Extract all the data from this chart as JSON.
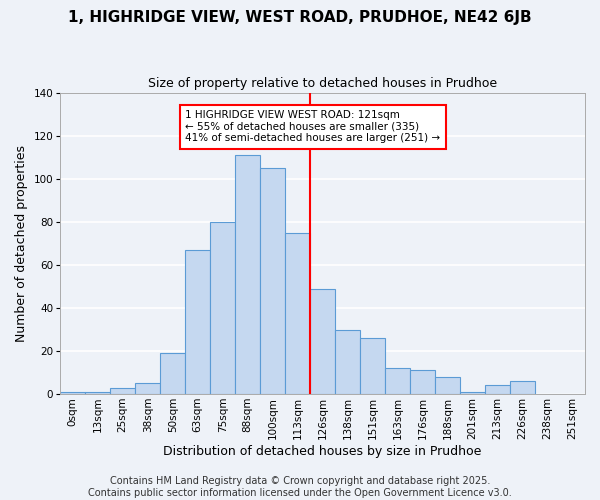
{
  "title": "1, HIGHRIDGE VIEW, WEST ROAD, PRUDHOE, NE42 6JB",
  "subtitle": "Size of property relative to detached houses in Prudhoe",
  "xlabel": "Distribution of detached houses by size in Prudhoe",
  "ylabel": "Number of detached properties",
  "bar_labels": [
    "0sqm",
    "13sqm",
    "25sqm",
    "38sqm",
    "50sqm",
    "63sqm",
    "75sqm",
    "88sqm",
    "100sqm",
    "113sqm",
    "126sqm",
    "138sqm",
    "151sqm",
    "163sqm",
    "176sqm",
    "188sqm",
    "201sqm",
    "213sqm",
    "226sqm",
    "238sqm",
    "251sqm"
  ],
  "bar_values": [
    1,
    1,
    3,
    5,
    19,
    67,
    80,
    111,
    105,
    75,
    49,
    30,
    26,
    12,
    11,
    8,
    1,
    4,
    6,
    0,
    0
  ],
  "bar_color": "#c5d8f0",
  "bar_edge_color": "#5b9bd5",
  "bar_width": 1.0,
  "vline_x": 9.5,
  "vline_color": "red",
  "ylim": [
    0,
    140
  ],
  "yticks": [
    0,
    20,
    40,
    60,
    80,
    100,
    120,
    140
  ],
  "annotation_title": "1 HIGHRIDGE VIEW WEST ROAD: 121sqm",
  "annotation_line1": "← 55% of detached houses are smaller (335)",
  "annotation_line2": "41% of semi-detached houses are larger (251) →",
  "annotation_box_color": "white",
  "annotation_box_edge": "red",
  "footer1": "Contains HM Land Registry data © Crown copyright and database right 2025.",
  "footer2": "Contains public sector information licensed under the Open Government Licence v3.0.",
  "background_color": "#eef2f8",
  "grid_color": "white",
  "title_fontsize": 11,
  "subtitle_fontsize": 9,
  "axis_label_fontsize": 9,
  "tick_fontsize": 7.5,
  "footer_fontsize": 7,
  "annotation_fontsize": 7.5
}
